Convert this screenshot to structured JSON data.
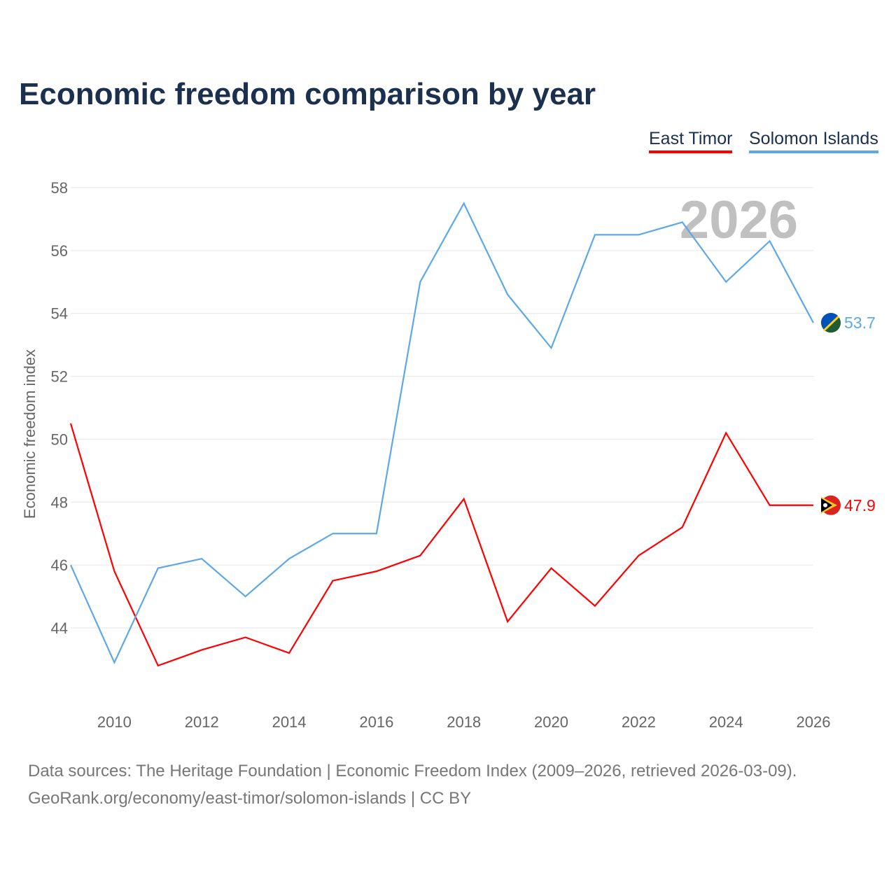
{
  "chart_data": {
    "type": "line",
    "title": "Economic freedom comparison by year",
    "xlabel": "",
    "ylabel": "Economic freedom index",
    "xlim": [
      2009,
      2026
    ],
    "ylim": [
      42,
      58
    ],
    "x_ticks": [
      2010,
      2012,
      2014,
      2016,
      2018,
      2020,
      2022,
      2024,
      2026
    ],
    "y_ticks": [
      44,
      46,
      48,
      50,
      52,
      54,
      56,
      58
    ],
    "grid": true,
    "legend_position": "top-right",
    "year_watermark": "2026",
    "x": [
      2009,
      2010,
      2011,
      2012,
      2013,
      2014,
      2015,
      2016,
      2017,
      2018,
      2019,
      2020,
      2021,
      2022,
      2023,
      2024,
      2025,
      2026
    ],
    "series": [
      {
        "name": "East Timor",
        "color": "#ff0000",
        "end_label": "47.9",
        "values": [
          50.5,
          45.8,
          42.8,
          43.3,
          43.7,
          43.2,
          45.5,
          45.8,
          46.3,
          48.1,
          44.2,
          45.9,
          44.7,
          46.3,
          47.2,
          50.2,
          47.9,
          47.9
        ]
      },
      {
        "name": "Solomon Islands",
        "color": "#5ea8e8",
        "end_label": "53.7",
        "values": [
          46.0,
          42.9,
          45.9,
          46.2,
          45.0,
          46.2,
          47.0,
          47.0,
          55.0,
          57.5,
          54.6,
          52.9,
          56.5,
          56.5,
          56.9,
          55.0,
          56.3,
          53.7
        ]
      }
    ]
  },
  "footer": {
    "line1": "Data sources: The Heritage Foundation | Economic Freedom Index (2009–2026, retrieved 2026-03-09).",
    "line2": "GeoRank.org/economy/east-timor/solomon-islands | CC BY"
  }
}
